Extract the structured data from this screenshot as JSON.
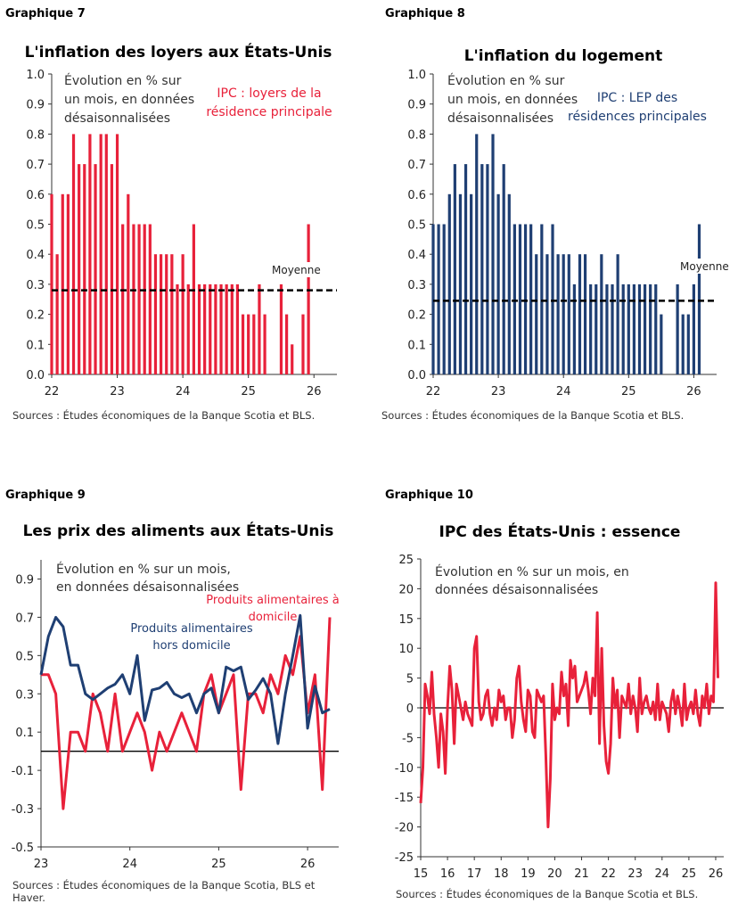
{
  "charts": [
    {
      "number_label": "Graphique 7",
      "title": "L'inflation des loyers aux États-Unis",
      "note": [
        "Évolution en % sur",
        "un mois, en données",
        "désaisonnalisées"
      ],
      "series_label": [
        "IPC : loyers de la",
        "résidence principale"
      ],
      "mean_label": "Moyenne",
      "source": "Sources : Études économiques de la Banque Scotia et  BLS.",
      "color": "#e8213a"
    },
    {
      "number_label": "Graphique 8",
      "title": "L'inflation du logement",
      "note": [
        "Évolution en % sur",
        "un mois, en données",
        "désaisonnalisées"
      ],
      "series_label": [
        "IPC : LEP des",
        "résidences principales"
      ],
      "mean_label": "Moyenne",
      "source": "Sources : Études économiques de la Banque Scotia et  BLS.",
      "color": "#1f3f73"
    },
    {
      "number_label": "Graphique 9",
      "title": "Les prix des aliments aux États-Unis",
      "note": [
        "Évolution en % sur un mois,",
        "en données désaisonnalisées"
      ],
      "series_labels": [
        [
          "Produits alimentaires à",
          "domicile"
        ],
        [
          "Produits alimentaires",
          "hors domicile"
        ]
      ],
      "source": [
        "Sources : Études économiques de la Banque Scotia, BLS et",
        "Haver."
      ],
      "colors": [
        "#e8213a",
        "#1f3f73"
      ]
    },
    {
      "number_label": "Graphique 10",
      "title": "IPC des États-Unis : essence",
      "note": [
        "Évolution en % sur un mois, en",
        "données désaisonnalisées"
      ],
      "source": "Sources : Études économiques de la Banque Scotia et  BLS.",
      "color": "#e8213a"
    }
  ],
  "chart_data": [
    {
      "type": "bar",
      "x_start": 22.0,
      "x_step": 0.08333,
      "xticks": [
        "22",
        "23",
        "24",
        "25",
        "26"
      ],
      "yticks": [
        "0.0",
        "0.1",
        "0.2",
        "0.3",
        "0.4",
        "0.5",
        "0.6",
        "0.7",
        "0.8",
        "0.9",
        "1.0"
      ],
      "ylim": [
        0,
        1.0
      ],
      "xlim": [
        22,
        26.35
      ],
      "mean": 0.28,
      "values": [
        0.6,
        0.4,
        0.6,
        0.6,
        0.8,
        0.7,
        0.7,
        0.8,
        0.7,
        0.8,
        0.8,
        0.7,
        0.8,
        0.5,
        0.6,
        0.5,
        0.5,
        0.5,
        0.5,
        0.4,
        0.4,
        0.4,
        0.4,
        0.3,
        0.4,
        0.3,
        0.5,
        0.3,
        0.3,
        0.3,
        0.3,
        0.3,
        0.3,
        0.3,
        0.3,
        0.2,
        0.2,
        0.2,
        0.3,
        0.2,
        null,
        null,
        0.3,
        0.2,
        0.1,
        null,
        0.2,
        0.5
      ]
    },
    {
      "type": "bar",
      "x_start": 22.0,
      "x_step": 0.08333,
      "xticks": [
        "22",
        "23",
        "24",
        "25",
        "26"
      ],
      "yticks": [
        "0.0",
        "0.1",
        "0.2",
        "0.3",
        "0.4",
        "0.5",
        "0.6",
        "0.7",
        "0.8",
        "0.9",
        "1.0"
      ],
      "ylim": [
        0,
        1.0
      ],
      "xlim": [
        22,
        26.35
      ],
      "mean": 0.245,
      "values": [
        0.5,
        0.5,
        0.5,
        0.6,
        0.7,
        0.6,
        0.7,
        0.6,
        0.8,
        0.7,
        0.7,
        0.8,
        0.6,
        0.7,
        0.6,
        0.5,
        0.5,
        0.5,
        0.5,
        0.4,
        0.5,
        0.4,
        0.5,
        0.4,
        0.4,
        0.4,
        0.3,
        0.4,
        0.4,
        0.3,
        0.3,
        0.4,
        0.3,
        0.3,
        0.4,
        0.3,
        0.3,
        0.3,
        0.3,
        0.3,
        0.3,
        0.3,
        0.2,
        null,
        null,
        0.3,
        0.2,
        0.2,
        0.3,
        0.5
      ]
    },
    {
      "type": "line",
      "x_start": 23.0,
      "x_step": 0.08333,
      "xticks": [
        "23",
        "24",
        "25",
        "26"
      ],
      "yticks": [
        "-0.5",
        "-0.3",
        "-0.1",
        "0.1",
        "0.3",
        "0.5",
        "0.7",
        "0.9"
      ],
      "ylim": [
        -0.5,
        1.0
      ],
      "xlim": [
        23,
        26.35
      ],
      "zero_line": 0,
      "series": [
        {
          "name": "Produits alimentaires à domicile",
          "values": [
            0.4,
            0.4,
            0.3,
            -0.3,
            0.1,
            0.1,
            0.0,
            0.3,
            0.2,
            0.0,
            0.3,
            0.0,
            0.1,
            0.2,
            0.1,
            -0.1,
            0.1,
            0.0,
            0.1,
            0.2,
            0.1,
            0.0,
            0.3,
            0.4,
            0.2,
            0.3,
            0.4,
            -0.2,
            0.3,
            0.3,
            0.2,
            0.4,
            0.3,
            0.5,
            0.4,
            0.6,
            0.2,
            0.4,
            -0.2,
            0.7
          ]
        },
        {
          "name": "Produits alimentaires hors domicile",
          "values": [
            0.4,
            0.6,
            0.7,
            0.65,
            0.45,
            0.45,
            0.3,
            0.27,
            0.3,
            0.33,
            0.35,
            0.4,
            0.3,
            0.5,
            0.16,
            0.32,
            0.33,
            0.36,
            0.3,
            0.28,
            0.3,
            0.2,
            0.3,
            0.33,
            0.2,
            0.44,
            0.42,
            0.44,
            0.27,
            0.32,
            0.38,
            0.3,
            0.04,
            0.3,
            0.5,
            0.71,
            0.12,
            0.34,
            0.2,
            0.22
          ]
        }
      ]
    },
    {
      "type": "line",
      "x_start": 15.0,
      "x_step": 0.08333,
      "xticks": [
        "15",
        "16",
        "17",
        "18",
        "19",
        "20",
        "21",
        "22",
        "23",
        "24",
        "25",
        "26"
      ],
      "yticks": [
        "-25",
        "-20",
        "-15",
        "-10",
        "-5",
        "0",
        "5",
        "10",
        "15",
        "20",
        "25"
      ],
      "ylim": [
        -25,
        25
      ],
      "xlim": [
        15,
        26.3
      ],
      "zero_line": 0,
      "series": [
        {
          "name": "",
          "values": [
            -16,
            -10,
            4,
            2,
            -1,
            6,
            -1,
            -5,
            -10,
            -1,
            -4,
            -11,
            0,
            7,
            3,
            -6,
            4,
            2,
            0,
            -2,
            1,
            -1,
            -2,
            -3,
            10,
            12,
            1,
            -2,
            -1,
            2,
            3,
            -1,
            -3,
            0,
            -2,
            3,
            1,
            2,
            -2,
            0,
            0,
            -5,
            -2,
            5,
            7,
            1,
            -2,
            -4,
            3,
            2,
            -4,
            -5,
            3,
            2,
            1,
            2,
            -8,
            -20,
            -12,
            4,
            -2,
            0,
            -1,
            6,
            2,
            4,
            -3,
            8,
            5,
            7,
            1,
            2,
            3,
            4,
            6,
            3,
            -1,
            5,
            2,
            16,
            -6,
            10,
            -3,
            -9,
            -11,
            -6,
            5,
            0,
            3,
            -5,
            2,
            1,
            0,
            4,
            -1,
            2,
            0,
            -4,
            5,
            -1,
            1,
            2,
            0,
            -1,
            1,
            -2,
            4,
            -2,
            1,
            0,
            -1,
            -4,
            1,
            3,
            -1,
            2,
            0,
            -3,
            4,
            -2,
            0,
            1,
            -1,
            3,
            -1,
            -3,
            2,
            0,
            4,
            -1,
            2,
            1,
            21,
            5
          ]
        }
      ]
    }
  ]
}
